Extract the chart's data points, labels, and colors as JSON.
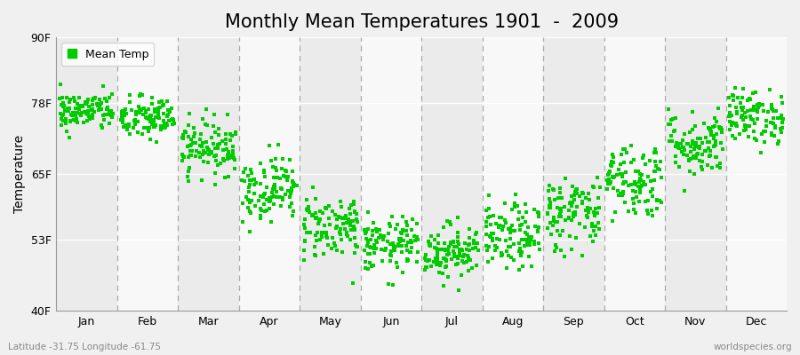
{
  "title": "Monthly Mean Temperatures 1901  -  2009",
  "ylabel": "Temperature",
  "yticks": [
    40,
    53,
    65,
    78,
    90
  ],
  "ytick_labels": [
    "40F",
    "53F",
    "65F",
    "78F",
    "90F"
  ],
  "ylim": [
    40,
    90
  ],
  "months": [
    "Jan",
    "Feb",
    "Mar",
    "Apr",
    "May",
    "Jun",
    "Jul",
    "Aug",
    "Sep",
    "Oct",
    "Nov",
    "Dec"
  ],
  "dot_color": "#00cc00",
  "dot_size": 5,
  "fig_background": "#f0f0f0",
  "plot_background": "#f8f8f8",
  "band_odd": "#ebebeb",
  "band_even": "#f8f8f8",
  "legend_label": "Mean Temp",
  "footer_left": "Latitude -31.75 Longitude -61.75",
  "footer_right": "worldspecies.org",
  "title_fontsize": 15,
  "label_fontsize": 9,
  "monthly_means": [
    76.5,
    75.2,
    70.0,
    62.5,
    55.5,
    52.0,
    51.0,
    53.5,
    58.0,
    64.0,
    70.5,
    75.5
  ],
  "monthly_stds": [
    1.8,
    2.0,
    2.5,
    3.0,
    3.0,
    2.5,
    2.5,
    3.0,
    3.5,
    3.5,
    3.0,
    2.5
  ],
  "n_years": 109,
  "seed": 42
}
